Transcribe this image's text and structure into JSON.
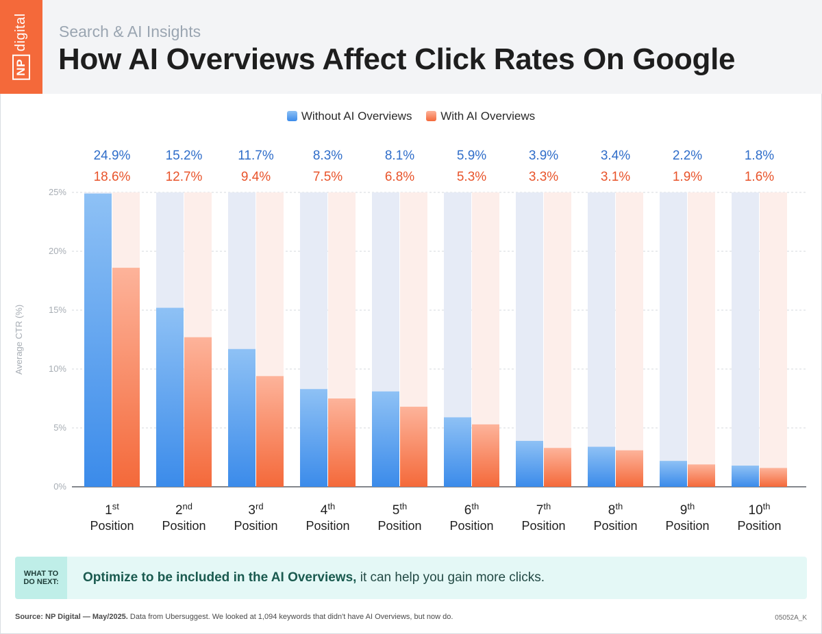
{
  "header": {
    "logo_np": "NP",
    "logo_word": "digital",
    "kicker": "Search & AI Insights",
    "title": "How AI Overviews Affect Click Rates On Google"
  },
  "legend": {
    "without": "Without AI Overviews",
    "with": "With AI Overviews"
  },
  "colors": {
    "blue_top": "#8ec1f5",
    "blue_bottom": "#3b8bea",
    "blue_track": "#e6ebf6",
    "blue_label": "#2f6dc9",
    "orange_top": "#fdb39a",
    "orange_bottom": "#f4693a",
    "orange_track": "#fdeeea",
    "orange_label": "#e8532a",
    "accent": "#f4693a"
  },
  "chart_data": {
    "type": "bar",
    "categories": [
      {
        "num": "1",
        "suffix": "st",
        "label": "Position"
      },
      {
        "num": "2",
        "suffix": "nd",
        "label": "Position"
      },
      {
        "num": "3",
        "suffix": "rd",
        "label": "Position"
      },
      {
        "num": "4",
        "suffix": "th",
        "label": "Position"
      },
      {
        "num": "5",
        "suffix": "th",
        "label": "Position"
      },
      {
        "num": "6",
        "suffix": "th",
        "label": "Position"
      },
      {
        "num": "7",
        "suffix": "th",
        "label": "Position"
      },
      {
        "num": "8",
        "suffix": "th",
        "label": "Position"
      },
      {
        "num": "9",
        "suffix": "th",
        "label": "Position"
      },
      {
        "num": "10",
        "suffix": "th",
        "label": "Position"
      }
    ],
    "series": [
      {
        "name": "Without AI Overviews",
        "values": [
          24.9,
          15.2,
          11.7,
          8.3,
          8.1,
          5.9,
          3.9,
          3.4,
          2.2,
          1.8
        ]
      },
      {
        "name": "With AI Overviews",
        "values": [
          18.6,
          12.7,
          9.4,
          7.5,
          6.8,
          5.3,
          3.3,
          3.1,
          1.9,
          1.6
        ]
      }
    ],
    "ylabel": "Average CTR (%)",
    "yticks": [
      0,
      5,
      10,
      15,
      20,
      25
    ],
    "ylim": [
      0,
      25
    ],
    "value_suffix": "%",
    "grid": "horizontal dashed",
    "legend_position": "top-center"
  },
  "callout": {
    "tag_line1": "WHAT TO",
    "tag_line2": "DO NEXT:",
    "bold": "Optimize to be included in the AI Overviews,",
    "rest": " it can help you gain more clicks."
  },
  "footer": {
    "source_bold": "Source: NP Digital — May/2025.",
    "source_rest": " Data from Ubersuggest. We looked at 1,094 keywords that didn't have AI Overviews, but now do.",
    "code": "05052A_K"
  }
}
